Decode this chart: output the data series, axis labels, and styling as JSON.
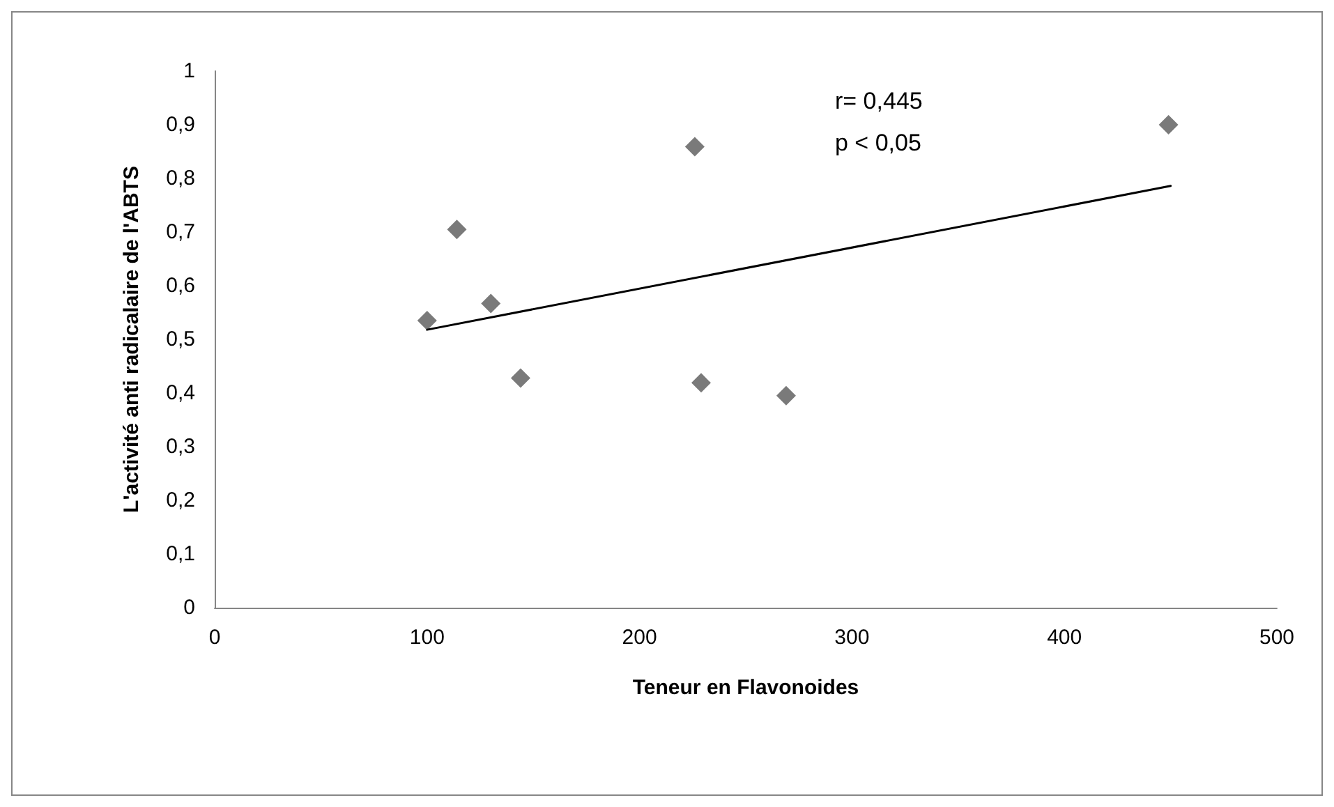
{
  "chart_data": {
    "type": "scatter",
    "xlabel": "Teneur en Flavonoides",
    "ylabel": "L'activité anti radicalaire de l'ABTS",
    "marker": "diamond",
    "grid": false,
    "xlim": [
      0,
      500
    ],
    "xticks": [
      0,
      100,
      200,
      300,
      400,
      500
    ],
    "ylim": [
      0,
      1
    ],
    "yticks": [
      0,
      {
        "value": 0.1,
        "label": "0,1"
      },
      {
        "value": 0.2,
        "label": "0,2"
      },
      {
        "value": 0.3,
        "label": "0,3"
      },
      {
        "value": 0.4,
        "label": "0,4"
      },
      {
        "value": 0.5,
        "label": "0,5"
      },
      {
        "value": 0.6,
        "label": "0,6"
      },
      {
        "value": 0.7,
        "label": "0,7"
      },
      {
        "value": 0.8,
        "label": "0,8"
      },
      {
        "value": 0.9,
        "label": "0,9"
      },
      1
    ],
    "annotations": [
      "r= 0,445",
      "p < 0,05"
    ],
    "series": [
      {
        "color": "#595959",
        "x": [
          100,
          114,
          130,
          144,
          226,
          229,
          269,
          449
        ],
        "values": [
          0.535,
          0.705,
          0.567,
          0.428,
          0.859,
          0.419,
          0.395,
          0.9
        ]
      },
      {
        "type": "line",
        "color": "#000000",
        "marker": "none",
        "x": [
          100,
          450
        ],
        "values": [
          0.518,
          0.786
        ]
      }
    ]
  }
}
